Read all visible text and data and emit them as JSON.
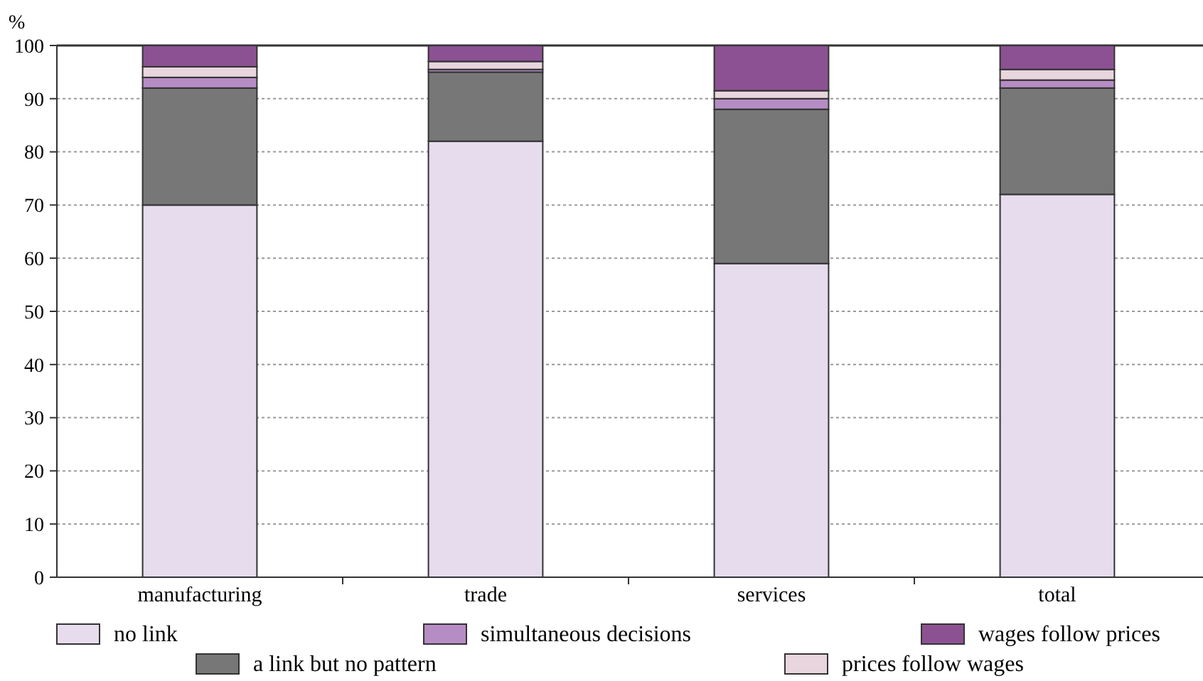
{
  "chart_data": {
    "type": "bar",
    "stacked": true,
    "ylabel": "%",
    "categories": [
      "manufacturing",
      "trade",
      "services",
      "total"
    ],
    "series": [
      {
        "name": "no link",
        "color": "#e6dcee",
        "values": [
          70,
          82,
          59,
          72
        ]
      },
      {
        "name": "a link but no pattern",
        "color": "#767776",
        "values": [
          22,
          13,
          29,
          20
        ]
      },
      {
        "name": "simultaneous decisions",
        "color": "#b68cc4",
        "values": [
          2,
          0.5,
          2,
          1.5
        ]
      },
      {
        "name": "prices follow wages",
        "color": "#e8d5de",
        "values": [
          2,
          1.5,
          1.5,
          2
        ]
      },
      {
        "name": "wages follow prices",
        "color": "#8c5192",
        "values": [
          4,
          3,
          8.5,
          4.5
        ]
      }
    ],
    "ylim": [
      0,
      100
    ],
    "yticks": [
      0,
      10,
      20,
      30,
      40,
      50,
      60,
      70,
      80,
      90,
      100
    ],
    "grid": "y",
    "legend": "bottom"
  }
}
